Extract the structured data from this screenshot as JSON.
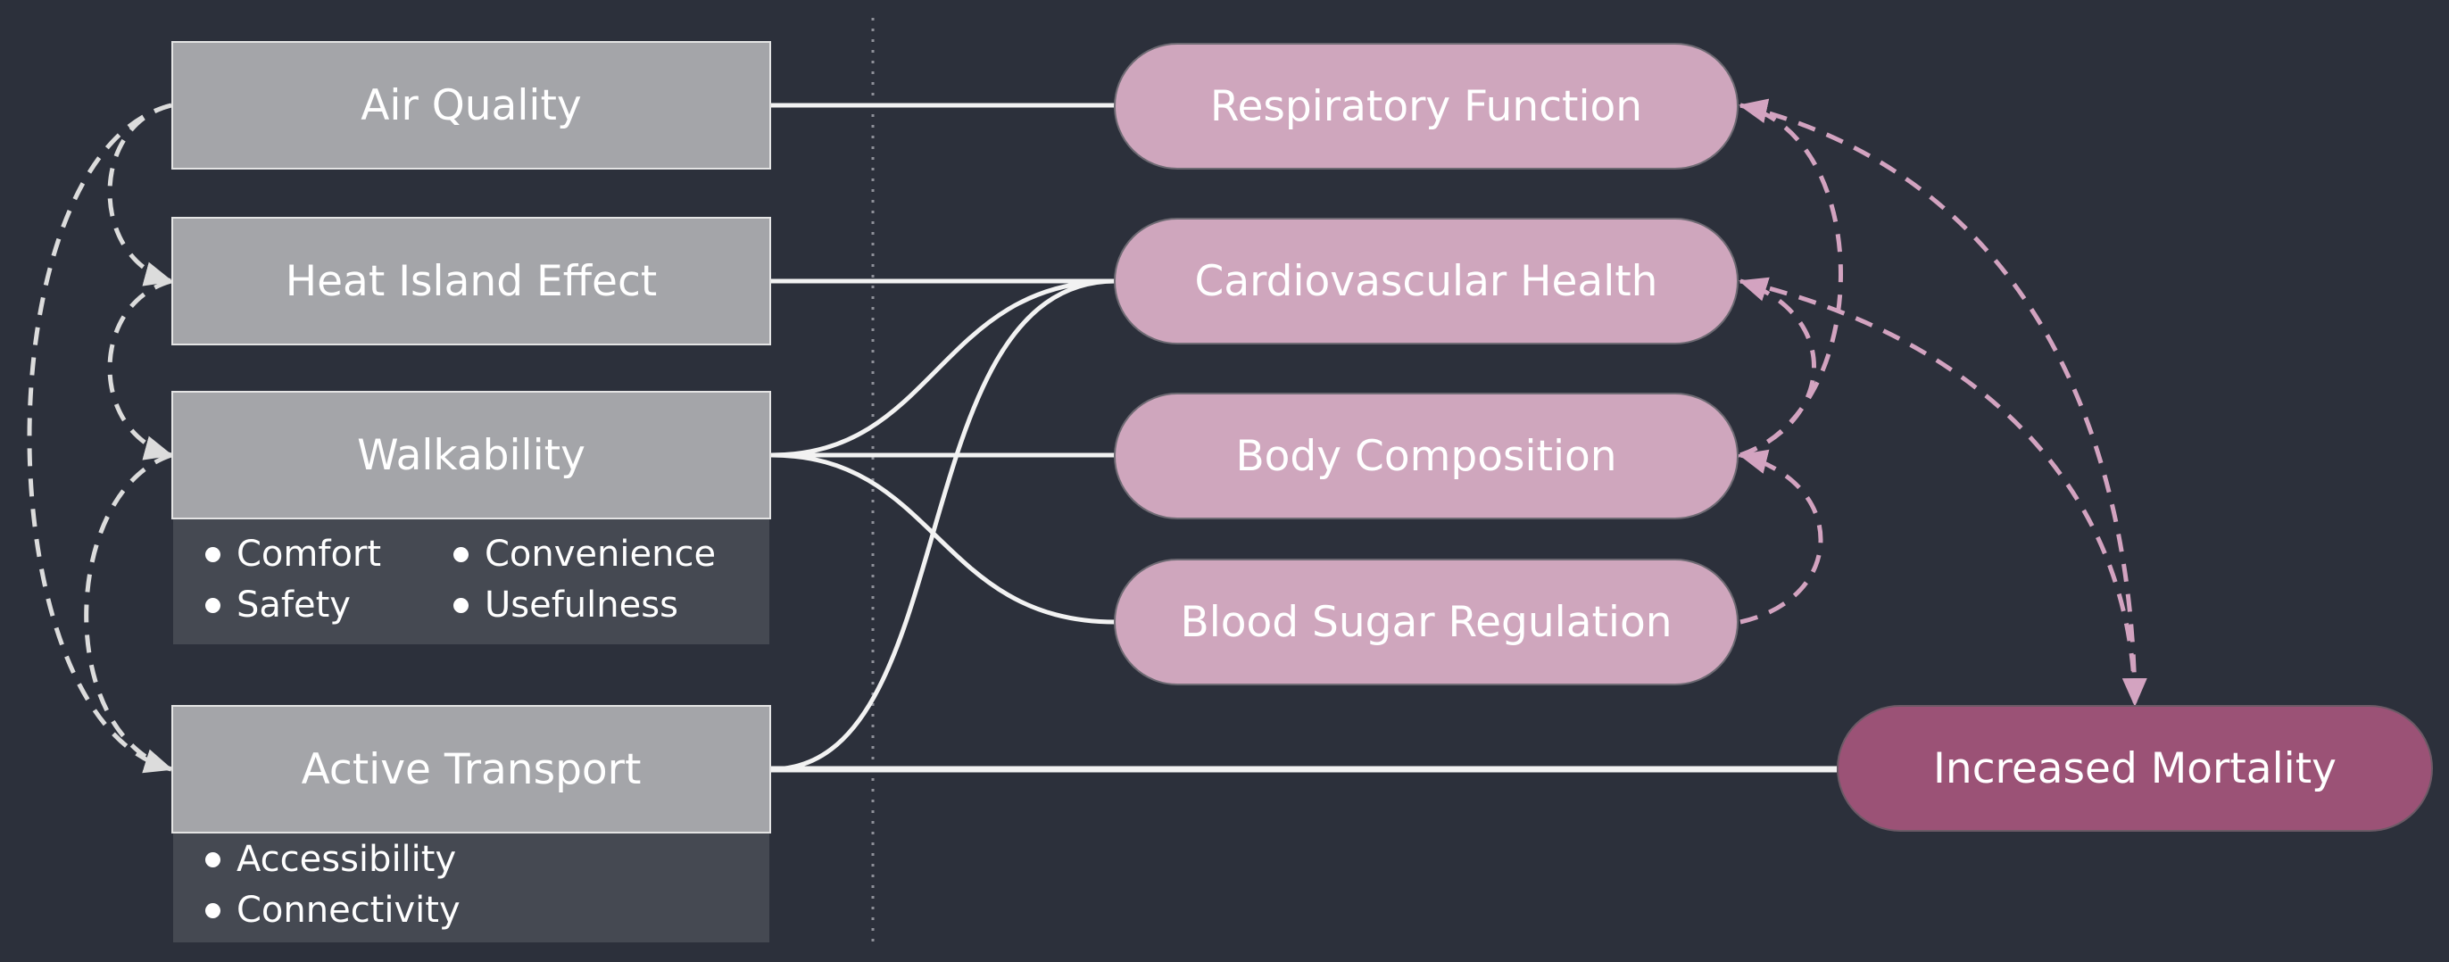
{
  "factors": {
    "air_quality": "Air Quality",
    "heat_island": "Heat Island Effect",
    "walkability": "Walkability",
    "active_transport": "Active Transport"
  },
  "walkability_attributes": [
    "Comfort",
    "Convenience",
    "Safety",
    "Usefulness"
  ],
  "active_transport_attributes": [
    "Accessibility",
    "Connectivity"
  ],
  "health_outcomes": {
    "respiratory": "Respiratory Function",
    "cardiovascular": "Cardiovascular Health",
    "body_composition": "Body Composition",
    "blood_sugar": "Blood Sugar Regulation"
  },
  "final_outcome": "Increased Mortality",
  "colors": {
    "background": "#2c303b",
    "factor_box": "#a4a5a9",
    "attribute_panel": "#454952",
    "health_pill": "#cfa6bd",
    "mortality_pill": "#9b5276",
    "solid_link": "#f2f2f2",
    "dashed_factor_link": "#dcdcdc",
    "dashed_health_link": "#d3a3c0"
  }
}
